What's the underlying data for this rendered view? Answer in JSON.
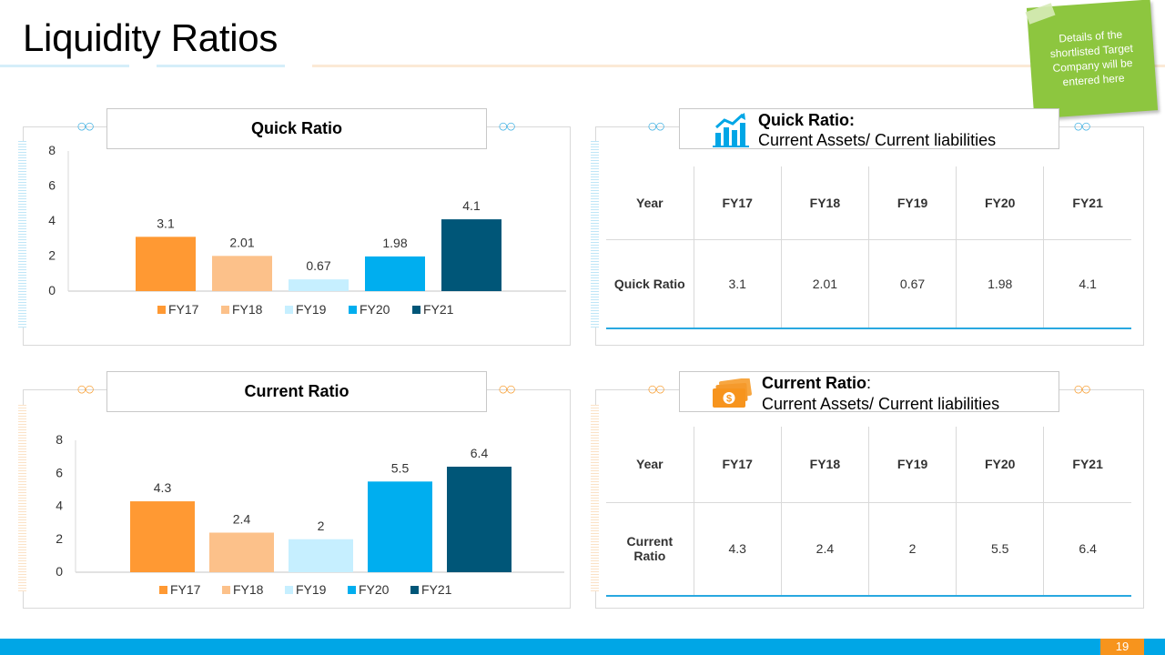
{
  "slide": {
    "title": "Liquidity Ratios",
    "note": "Details of the shortlisted Target Company will be entered here",
    "page_number": "19"
  },
  "colors": {
    "fy17": "#ff9933",
    "fy18": "#fcc18a",
    "fy19": "#c6efff",
    "fy20": "#00aeef",
    "fy21": "#005678",
    "accent_blue": "#29a8e0",
    "accent_orange": "#f7941d",
    "note_green": "#8dc63f"
  },
  "quick_panel": {
    "title": "Quick Ratio",
    "formula_head": "Quick Ratio:",
    "formula_body": " Current Assets/ Current liabilities",
    "icon": "growth-chart-icon",
    "table": {
      "header": [
        "Year",
        "FY17",
        "FY18",
        "FY19",
        "FY20",
        "FY21"
      ],
      "row": [
        "Quick Ratio",
        "3.1",
        "2.01",
        "0.67",
        "1.98",
        "4.1"
      ]
    }
  },
  "current_panel": {
    "title": "Current Ratio",
    "formula_head": "Current Ratio",
    "formula_colon": ":",
    "formula_body": "Current Assets/ Current liabilities",
    "icon": "money-stack-icon",
    "table": {
      "header": [
        "Year",
        "FY17",
        "FY18",
        "FY19",
        "FY20",
        "FY21"
      ],
      "row_label_line1": "Current",
      "row_label_line2": "Ratio",
      "row": [
        "4.3",
        "2.4",
        "2",
        "5.5",
        "6.4"
      ]
    }
  },
  "chart_data": [
    {
      "type": "bar",
      "title": "Quick Ratio",
      "categories": [
        "FY17",
        "FY18",
        "FY19",
        "FY20",
        "FY21"
      ],
      "values": [
        3.1,
        2.01,
        0.67,
        1.98,
        4.1
      ],
      "value_labels": [
        "3.1",
        "2.01",
        "0.67",
        "1.98",
        "4.1"
      ],
      "ylim": [
        0,
        8
      ],
      "yticks": [
        0,
        2,
        4,
        6,
        8
      ],
      "legend": [
        "FY17",
        "FY18",
        "FY19",
        "FY20",
        "FY21"
      ],
      "legend_position": "bottom",
      "grid": false
    },
    {
      "type": "bar",
      "title": "Current Ratio",
      "categories": [
        "FY17",
        "FY18",
        "FY19",
        "FY20",
        "FY21"
      ],
      "values": [
        4.3,
        2.4,
        2,
        5.5,
        6.4
      ],
      "value_labels": [
        "4.3",
        "2.4",
        "2",
        "5.5",
        "6.4"
      ],
      "ylim": [
        0,
        8
      ],
      "yticks": [
        0,
        2,
        4,
        6,
        8
      ],
      "legend": [
        "FY17",
        "FY18",
        "FY19",
        "FY20",
        "FY21"
      ],
      "legend_position": "bottom",
      "grid": false
    }
  ]
}
